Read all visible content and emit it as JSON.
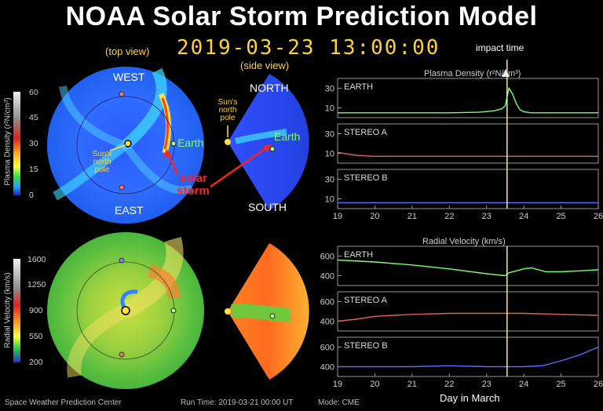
{
  "title": "NOAA Solar Storm Prediction Model",
  "timestamp": "2019-03-23 13:00:00",
  "labels": {
    "top_view": "(top view)",
    "side_view": "(side view)",
    "west": "WEST",
    "east": "EAST",
    "north": "NORTH",
    "south": "SOUTH",
    "earth_top": "Earth",
    "earth_side": "Earth",
    "sun_pole_top": "Sun's north pole",
    "sun_pole_side": "Sun's north pole",
    "solar_storm": "solar storm",
    "impact_time": "impact time",
    "day_in_march": "Day in March"
  },
  "colorbars": {
    "density": {
      "label": "Plasma Density (r²N/cm³)",
      "ticks": [
        "60",
        "45",
        "30",
        "15",
        "0"
      ]
    },
    "velocity": {
      "label": "Radial Velocity (km/s)",
      "ticks": [
        "1600",
        "1250",
        "900",
        "550",
        "200"
      ]
    }
  },
  "footer": {
    "center": "Space Weather Prediction Center",
    "run_time": "Run Time: 2019-03-21 00:00 UT",
    "mode": "Mode: CME"
  },
  "colors": {
    "earth": "#7cff6b",
    "stereo_a": "#e0605c",
    "stereo_b": "#5a6cff",
    "impact_line": "#f4f08a",
    "axis": "#bbbbbb"
  },
  "chart_data": [
    {
      "type": "line",
      "title": "Plasma Density (r²N/cm³)",
      "xlabel": "Day in March",
      "xlim": [
        19,
        26
      ],
      "x_ticks": [
        "19",
        "20",
        "21",
        "22",
        "23",
        "24",
        "25",
        "26"
      ],
      "impact_time": 23.55,
      "panels": [
        {
          "name": "EARTH",
          "ylim": [
            0,
            40
          ],
          "y_ticks": [
            "30",
            "10"
          ],
          "x": [
            19,
            20,
            21,
            22,
            22.8,
            23.2,
            23.4,
            23.5,
            23.6,
            23.7,
            23.8,
            23.9,
            24.0,
            24.2,
            24.5,
            25,
            26
          ],
          "y": [
            5,
            5,
            5,
            5,
            5.5,
            7,
            9,
            12,
            30,
            24,
            14,
            8,
            6,
            5,
            5,
            5,
            5
          ]
        },
        {
          "name": "STEREO A",
          "ylim": [
            0,
            40
          ],
          "y_ticks": [
            "30",
            "10"
          ],
          "x": [
            19,
            19.5,
            20,
            21,
            22,
            23,
            24,
            25,
            26
          ],
          "y": [
            11,
            8,
            7,
            7,
            7,
            7,
            7,
            7,
            7
          ]
        },
        {
          "name": "STEREO B",
          "ylim": [
            0,
            40
          ],
          "y_ticks": [
            "30",
            "10"
          ],
          "x": [
            19,
            20,
            21,
            22,
            23,
            24,
            25,
            26
          ],
          "y": [
            6,
            6,
            6,
            6,
            6,
            6,
            6,
            6
          ]
        }
      ]
    },
    {
      "type": "line",
      "title": "Radial Velocity (km/s)",
      "xlabel": "Day in March",
      "xlim": [
        19,
        26
      ],
      "x_ticks": [
        "19",
        "20",
        "21",
        "22",
        "23",
        "24",
        "25",
        "26"
      ],
      "impact_time": 23.55,
      "panels": [
        {
          "name": "EARTH",
          "ylim": [
            300,
            700
          ],
          "y_ticks": [
            "600",
            "400"
          ],
          "x": [
            19,
            20,
            21,
            22,
            23,
            23.5,
            23.6,
            23.8,
            24,
            24.2,
            24.6,
            25,
            25.5,
            26
          ],
          "y": [
            560,
            540,
            510,
            470,
            420,
            400,
            430,
            450,
            470,
            480,
            440,
            440,
            450,
            460
          ]
        },
        {
          "name": "STEREO A",
          "ylim": [
            300,
            700
          ],
          "y_ticks": [
            "600",
            "400"
          ],
          "x": [
            19,
            19.5,
            20,
            21,
            22,
            23,
            24,
            25,
            26
          ],
          "y": [
            400,
            420,
            450,
            470,
            480,
            480,
            480,
            470,
            460
          ]
        },
        {
          "name": "STEREO B",
          "ylim": [
            300,
            700
          ],
          "y_ticks": [
            "600",
            "400"
          ],
          "x": [
            19,
            20,
            21,
            22,
            23,
            24,
            24.5,
            25,
            25.5,
            26
          ],
          "y": [
            400,
            400,
            400,
            410,
            400,
            400,
            410,
            460,
            520,
            600
          ]
        }
      ]
    }
  ]
}
